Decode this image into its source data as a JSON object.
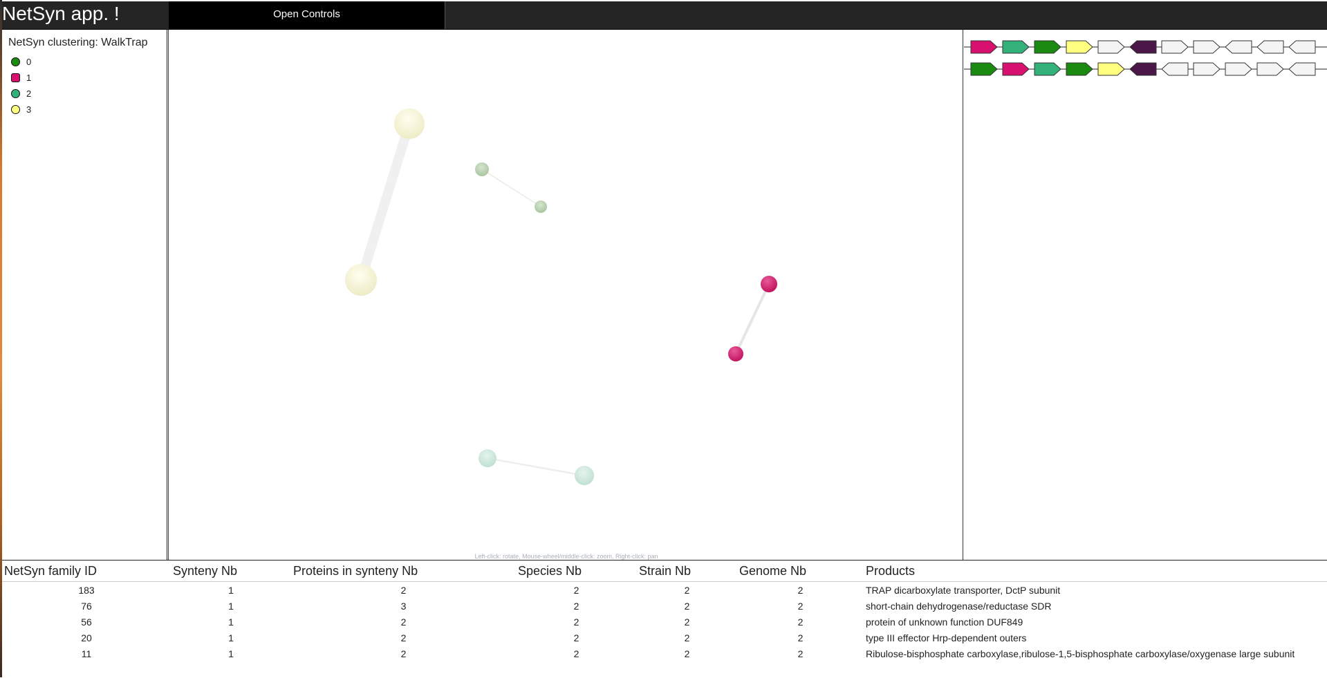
{
  "app": {
    "title": "NetSyn app. !"
  },
  "controls": {
    "button_label": "Open Controls"
  },
  "legend": {
    "title": "NetSyn clustering: WalkTrap",
    "items": [
      {
        "label": "0",
        "color": "#1a8a10",
        "shape": "circle"
      },
      {
        "label": "1",
        "color": "#d8106e",
        "shape": "square"
      },
      {
        "label": "2",
        "color": "#34b07a",
        "shape": "circle"
      },
      {
        "label": "3",
        "color": "#ffff80",
        "shape": "circle"
      }
    ]
  },
  "graph": {
    "hint": "Left-click: rotate, Mouse-wheel/middle-click: zoom, Right-click: pan",
    "edges": [
      {
        "from": "n3a",
        "to": "n3b"
      },
      {
        "from": "n0a",
        "to": "n0b"
      },
      {
        "from": "n1a",
        "to": "n1b"
      },
      {
        "from": "n2a",
        "to": "n2b"
      }
    ],
    "nodes": [
      {
        "id": "n3a",
        "cluster": "3"
      },
      {
        "id": "n3b",
        "cluster": "3"
      },
      {
        "id": "n0a",
        "cluster": "0"
      },
      {
        "id": "n0b",
        "cluster": "0"
      },
      {
        "id": "n1a",
        "cluster": "1"
      },
      {
        "id": "n1b",
        "cluster": "1"
      },
      {
        "id": "n2a",
        "cluster": "2"
      },
      {
        "id": "n2b",
        "cluster": "2"
      }
    ]
  },
  "synteny": {
    "rows": [
      {
        "genes": [
          {
            "color": "#d8106e",
            "dir": "right"
          },
          {
            "color": "#34b07a",
            "dir": "right"
          },
          {
            "color": "#1a8a10",
            "dir": "right"
          },
          {
            "color": "#ffff80",
            "dir": "right"
          },
          {
            "color": "#f4f4f4",
            "dir": "right"
          },
          {
            "color": "#4b1648",
            "dir": "left"
          },
          {
            "color": "#f4f4f4",
            "dir": "right"
          },
          {
            "color": "#f4f4f4",
            "dir": "right"
          },
          {
            "color": "#f4f4f4",
            "dir": "left"
          },
          {
            "color": "#f4f4f4",
            "dir": "left"
          },
          {
            "color": "#f4f4f4",
            "dir": "left"
          }
        ]
      },
      {
        "genes": [
          {
            "color": "#1a8a10",
            "dir": "right"
          },
          {
            "color": "#d8106e",
            "dir": "right"
          },
          {
            "color": "#34b07a",
            "dir": "right"
          },
          {
            "color": "#1a8a10",
            "dir": "right"
          },
          {
            "color": "#ffff80",
            "dir": "right"
          },
          {
            "color": "#4b1648",
            "dir": "left"
          },
          {
            "color": "#f4f4f4",
            "dir": "left"
          },
          {
            "color": "#f4f4f4",
            "dir": "right"
          },
          {
            "color": "#f4f4f4",
            "dir": "right"
          },
          {
            "color": "#f4f4f4",
            "dir": "right"
          },
          {
            "color": "#f4f4f4",
            "dir": "left"
          }
        ]
      }
    ],
    "end_marker_color": "#d8106e"
  },
  "table": {
    "headers": [
      "NetSyn family ID",
      "Synteny Nb",
      "Proteins in synteny Nb",
      "Species Nb",
      "Strain Nb",
      "Genome Nb",
      "Products"
    ],
    "rows": [
      [
        "183",
        "1",
        "2",
        "2",
        "2",
        "2",
        "TRAP dicarboxylate transporter, DctP subunit"
      ],
      [
        "76",
        "1",
        "3",
        "2",
        "2",
        "2",
        "short-chain dehydrogenase/reductase SDR"
      ],
      [
        "56",
        "1",
        "2",
        "2",
        "2",
        "2",
        "protein of unknown function DUF849"
      ],
      [
        "20",
        "1",
        "2",
        "2",
        "2",
        "2",
        "type III effector Hrp-dependent outers"
      ],
      [
        "11",
        "1",
        "2",
        "2",
        "2",
        "2",
        "Ribulose-bisphosphate carboxylase,ribulose-1,5-bisphosphate carboxylase/oxygenase large subunit"
      ]
    ]
  }
}
